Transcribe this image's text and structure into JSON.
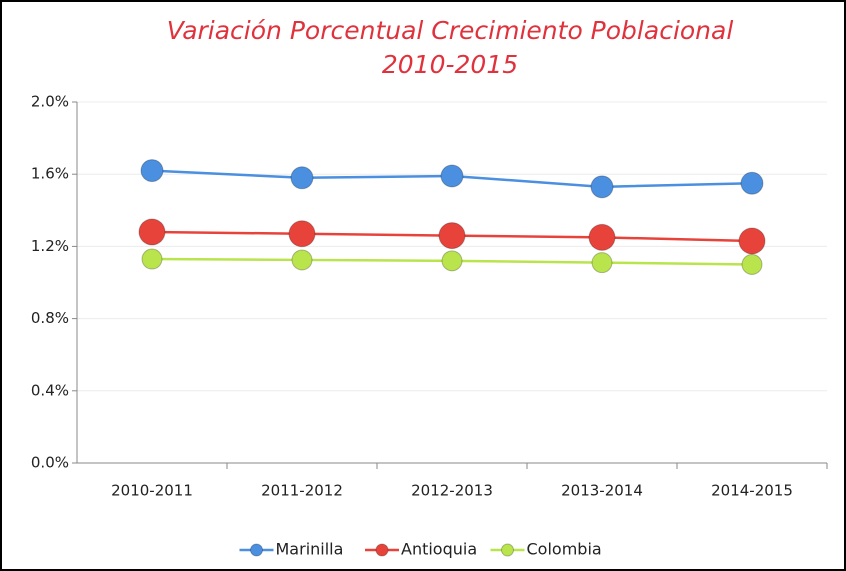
{
  "chart_data": {
    "type": "line",
    "title": "Variación Porcentual Crecimiento Poblacional",
    "subtitle": "2010-2015",
    "categories": [
      "2010-2011",
      "2011-2012",
      "2012-2013",
      "2013-2014",
      "2014-2015"
    ],
    "series": [
      {
        "name": "Marinilla",
        "color": "#4a8fe0",
        "values": [
          1.62,
          1.58,
          1.59,
          1.53,
          1.55
        ]
      },
      {
        "name": "Antioquia",
        "color": "#e8433b",
        "values": [
          1.28,
          1.27,
          1.26,
          1.25,
          1.23
        ]
      },
      {
        "name": "Colombia",
        "color": "#b9e44c",
        "values": [
          1.13,
          1.125,
          1.12,
          1.11,
          1.1
        ]
      }
    ],
    "ylim": [
      0,
      2
    ],
    "yticks": [
      {
        "value": 0,
        "label": "0.0%"
      },
      {
        "value": 0.4,
        "label": "0.4%"
      },
      {
        "value": 0.8,
        "label": "0.8%"
      },
      {
        "value": 1.2,
        "label": "1.2%"
      },
      {
        "value": 1.6,
        "label": "1.6%"
      },
      {
        "value": 2,
        "label": "2.0%"
      }
    ],
    "grid": true,
    "legend": "bottom"
  }
}
